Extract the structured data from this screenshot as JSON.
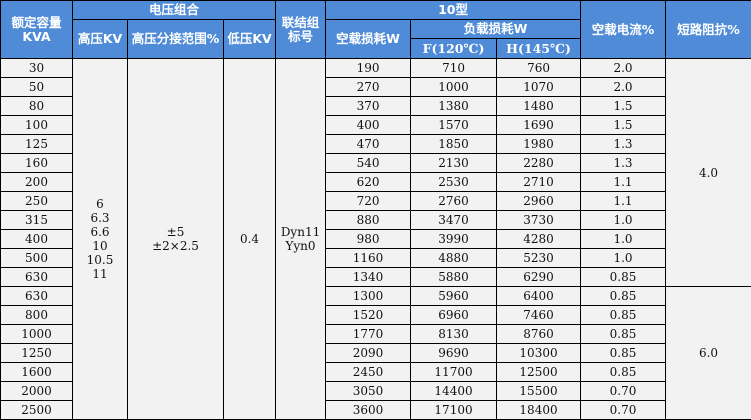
{
  "header": {
    "capacity": [
      "额定容量",
      "KVA"
    ],
    "voltage_group": "电压组合",
    "hv": "高压KV",
    "tap_range": "高压分接范围%",
    "lv": "低压KV",
    "vector_group": "联结组标号",
    "type": "10型",
    "no_load_loss": "空载损耗W",
    "load_loss": "负载损耗W",
    "load_loss_f": "F(120℃)",
    "load_loss_h": "H(145℃)",
    "no_load_current": "空载电流%",
    "impedance": "短路阻抗%"
  },
  "merged": {
    "hv_values": [
      "6",
      "6.3",
      "6.6",
      "10",
      "10.5",
      "11"
    ],
    "tap_values": [
      "±5",
      "±2×2.5"
    ],
    "lv_value": "0.4",
    "vector_values": [
      "Dyn11",
      "Yyn0"
    ],
    "impedance_groups": [
      "4.0",
      "6.0"
    ]
  },
  "rows": [
    [
      "30",
      "190",
      "710",
      "760",
      "2.0"
    ],
    [
      "50",
      "270",
      "1000",
      "1070",
      "2.0"
    ],
    [
      "80",
      "370",
      "1380",
      "1480",
      "1.5"
    ],
    [
      "100",
      "400",
      "1570",
      "1690",
      "1.5"
    ],
    [
      "125",
      "470",
      "1850",
      "1980",
      "1.3"
    ],
    [
      "160",
      "540",
      "2130",
      "2280",
      "1.3"
    ],
    [
      "200",
      "620",
      "2530",
      "2710",
      "1.1"
    ],
    [
      "250",
      "720",
      "2760",
      "2960",
      "1.1"
    ],
    [
      "315",
      "880",
      "3470",
      "3730",
      "1.0"
    ],
    [
      "400",
      "980",
      "3990",
      "4280",
      "1.0"
    ],
    [
      "500",
      "1160",
      "4880",
      "5230",
      "1.0"
    ],
    [
      "630",
      "1340",
      "5880",
      "6290",
      "0.85"
    ],
    [
      "630",
      "1300",
      "5960",
      "6400",
      "0.85"
    ],
    [
      "800",
      "1520",
      "6960",
      "7460",
      "0.85"
    ],
    [
      "1000",
      "1770",
      "8130",
      "8760",
      "0.85"
    ],
    [
      "1250",
      "2090",
      "9690",
      "10300",
      "0.85"
    ],
    [
      "1600",
      "2450",
      "11700",
      "12500",
      "0.85"
    ],
    [
      "2000",
      "3050",
      "14400",
      "15500",
      "0.70"
    ],
    [
      "2500",
      "3600",
      "17100",
      "18400",
      "0.70"
    ]
  ],
  "colors": {
    "header_bg": "#4f8bd6",
    "body_bg": "#f2f2f2"
  }
}
